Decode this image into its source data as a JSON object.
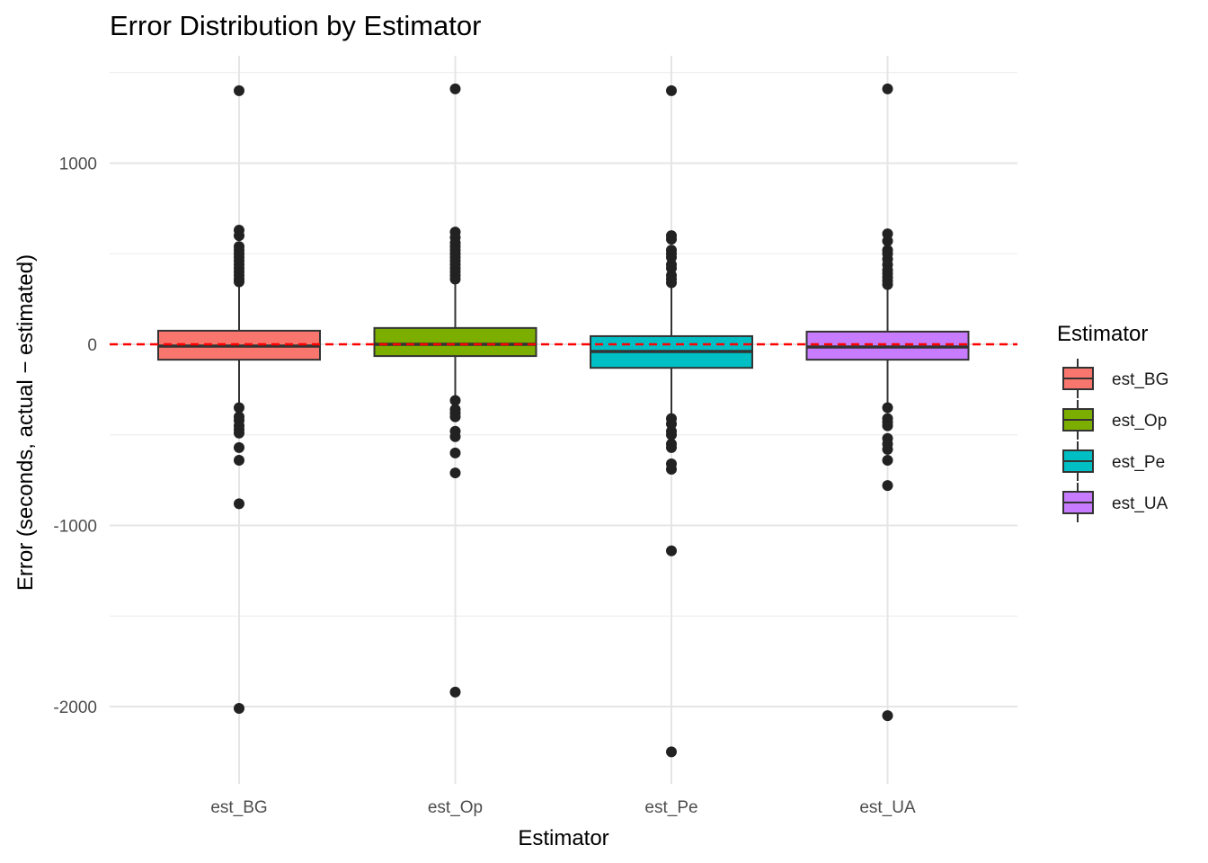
{
  "chart_data": {
    "type": "box",
    "title": "Error Distribution by Estimator",
    "xlabel": "Estimator",
    "ylabel": "Error (seconds, actual − estimated)",
    "ylim": [
      -2400,
      1570
    ],
    "yticks": [
      1000,
      0,
      -1000,
      -2000
    ],
    "ytick_labels": [
      "1000",
      "0",
      "-1000",
      "-2000"
    ],
    "y_minor_ticks": [
      1500,
      500,
      -500,
      -1500
    ],
    "grid": true,
    "reference_line": {
      "y": 0,
      "color": "#ff0000",
      "style": "dashed"
    },
    "legend": {
      "title": "Estimator",
      "position": "right"
    },
    "categories": [
      "est_BG",
      "est_Op",
      "est_Pe",
      "est_UA"
    ],
    "series": [
      {
        "name": "est_BG",
        "color": "#f8766d",
        "q1": -85,
        "median": -10,
        "q3": 75,
        "whisker_low": -340,
        "whisker_high": 340,
        "outliers": [
          1400,
          630,
          600,
          540,
          520,
          500,
          480,
          460,
          440,
          420,
          400,
          380,
          360,
          345,
          -350,
          -400,
          -420,
          -450,
          -470,
          -490,
          -570,
          -640,
          -880,
          -2010
        ]
      },
      {
        "name": "est_Op",
        "color": "#7cae00",
        "q1": -65,
        "median": 0,
        "q3": 90,
        "whisker_low": -300,
        "whisker_high": 350,
        "outliers": [
          1410,
          620,
          590,
          560,
          540,
          520,
          500,
          480,
          460,
          440,
          420,
          400,
          380,
          360,
          -310,
          -360,
          -380,
          -400,
          -480,
          -510,
          -600,
          -710,
          -1920
        ]
      },
      {
        "name": "est_Pe",
        "color": "#00bfc4",
        "q1": -130,
        "median": -40,
        "q3": 45,
        "whisker_low": -400,
        "whisker_high": 330,
        "outliers": [
          1400,
          600,
          580,
          520,
          500,
          480,
          440,
          420,
          380,
          360,
          340,
          -410,
          -440,
          -480,
          -500,
          -550,
          -570,
          -660,
          -690,
          -1140,
          -2250
        ]
      },
      {
        "name": "est_UA",
        "color": "#c77cff",
        "q1": -85,
        "median": -15,
        "q3": 70,
        "whisker_low": -350,
        "whisker_high": 330,
        "outliers": [
          1410,
          610,
          570,
          520,
          500,
          470,
          440,
          410,
          390,
          370,
          350,
          330,
          -350,
          -410,
          -430,
          -450,
          -520,
          -550,
          -580,
          -640,
          -780,
          -2050
        ]
      }
    ]
  }
}
